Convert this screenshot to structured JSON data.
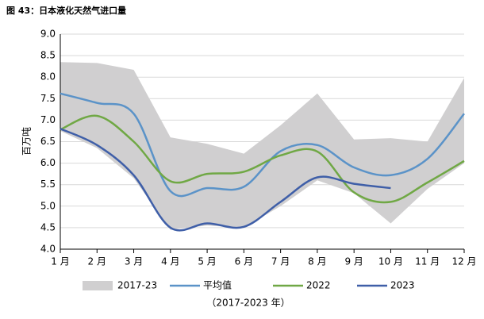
{
  "chart_data": {
    "type": "line",
    "title": "图 43：日本液化天然气进口量",
    "y_label": "百万吨",
    "x_label": "（2017-2023 年）",
    "categories": [
      "1 月",
      "2 月",
      "3 月",
      "4 月",
      "5 月",
      "6 月",
      "7 月",
      "8 月",
      "9 月",
      "10 月",
      "11 月",
      "12 月"
    ],
    "ylim": [
      4,
      9
    ],
    "yticks": [
      {
        "value": 4,
        "label": "4.0"
      },
      4.5,
      {
        "value": 5,
        "label": "5.0"
      },
      5.5,
      {
        "value": 6,
        "label": "6.0"
      },
      6.5,
      {
        "value": 7,
        "label": "7.0"
      },
      7.5,
      {
        "value": 8,
        "label": "8.0"
      },
      8.5,
      {
        "value": 9,
        "label": "9.0"
      }
    ],
    "grid": true,
    "band": {
      "name": "2017-23",
      "color": "#d0cfd0",
      "high": [
        8.35,
        8.33,
        8.17,
        6.6,
        6.45,
        6.22,
        6.88,
        7.62,
        6.55,
        6.58,
        6.5,
        7.98
      ],
      "low": [
        6.75,
        6.35,
        5.65,
        4.45,
        4.55,
        4.5,
        5.0,
        5.6,
        5.3,
        4.6,
        5.4,
        6.0
      ]
    },
    "series": [
      {
        "name": "平均值",
        "color": "#5b93c8",
        "values": [
          7.62,
          7.4,
          7.15,
          5.35,
          5.42,
          5.45,
          6.28,
          6.42,
          5.9,
          5.72,
          6.1,
          7.15
        ]
      },
      {
        "name": "2022",
        "color": "#70a845",
        "values": [
          6.78,
          7.1,
          6.5,
          5.58,
          5.75,
          5.8,
          6.18,
          6.27,
          5.32,
          5.1,
          5.55,
          6.05
        ]
      },
      {
        "name": "2023",
        "color": "#3f5fa8",
        "values": [
          6.8,
          6.42,
          5.72,
          4.5,
          4.6,
          4.52,
          5.1,
          5.67,
          5.52,
          5.42,
          null,
          null
        ]
      }
    ]
  }
}
